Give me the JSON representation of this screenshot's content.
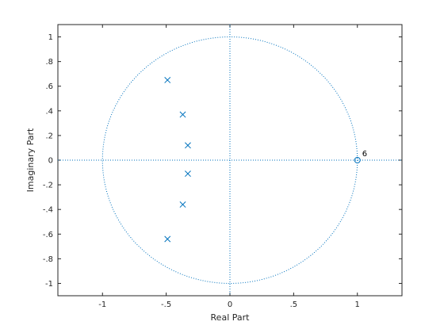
{
  "chart_data": {
    "type": "scatter",
    "title": "",
    "xlabel": "Real Part",
    "ylabel": "Imaginary Part",
    "xlim": [
      -1.35,
      1.35
    ],
    "ylim": [
      -1.1,
      1.1
    ],
    "x_ticks": [
      -1,
      -0.5,
      0,
      0.5,
      1
    ],
    "y_ticks": [
      -1,
      -0.8,
      -0.6,
      -0.4,
      -0.2,
      0,
      0.2,
      0.4,
      0.6,
      0.8,
      1
    ],
    "grid": false,
    "unit_circle": true,
    "reference_axes": true,
    "color": "#0072bd",
    "series": [
      {
        "marker": "x",
        "points": [
          {
            "x": -0.49,
            "y": 0.65
          },
          {
            "x": -0.37,
            "y": 0.37
          },
          {
            "x": -0.33,
            "y": 0.12
          },
          {
            "x": -0.33,
            "y": -0.11
          },
          {
            "x": -0.37,
            "y": -0.36
          },
          {
            "x": -0.49,
            "y": -0.64
          }
        ]
      },
      {
        "marker": "o",
        "points": [
          {
            "x": 1.0,
            "y": 0.0
          }
        ]
      }
    ],
    "annotations": [
      {
        "text": "6",
        "x": 1.0,
        "y": 0.0
      }
    ]
  }
}
